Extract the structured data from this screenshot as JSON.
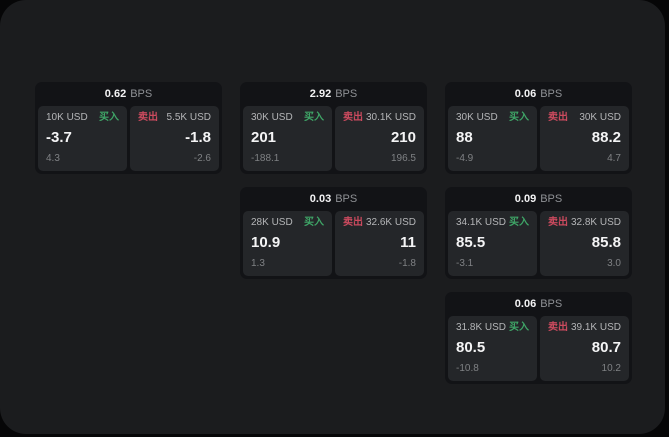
{
  "colors": {
    "green": "#3fa567",
    "red": "#cb4a5e",
    "surface": "#1b1c1e",
    "card": "#121316",
    "panel": "#242629"
  },
  "labels": {
    "bps": "BPS",
    "buy": "买入",
    "sell": "卖出"
  },
  "cards": [
    {
      "bps": "0.62",
      "buy": {
        "size": "10K USD",
        "price": "-3.7",
        "delta": "4.3"
      },
      "sell": {
        "size": "5.5K USD",
        "price": "-1.8",
        "delta": "-2.6"
      }
    },
    {
      "bps": "2.92",
      "buy": {
        "size": "30K USD",
        "price": "201",
        "delta": "-188.1"
      },
      "sell": {
        "size": "30.1K USD",
        "price": "210",
        "delta": "196.5"
      }
    },
    {
      "bps": "0.06",
      "buy": {
        "size": "30K USD",
        "price": "88",
        "delta": "-4.9"
      },
      "sell": {
        "size": "30K USD",
        "price": "88.2",
        "delta": "4.7"
      }
    },
    {
      "bps": "0.03",
      "buy": {
        "size": "28K USD",
        "price": "10.9",
        "delta": "1.3"
      },
      "sell": {
        "size": "32.6K USD",
        "price": "11",
        "delta": "-1.8"
      }
    },
    {
      "bps": "0.09",
      "buy": {
        "size": "34.1K USD",
        "price": "85.5",
        "delta": "-3.1"
      },
      "sell": {
        "size": "32.8K USD",
        "price": "85.8",
        "delta": "3.0"
      }
    },
    {
      "bps": "0.06",
      "buy": {
        "size": "31.8K USD",
        "price": "80.5",
        "delta": "-10.8"
      },
      "sell": {
        "size": "39.1K USD",
        "price": "80.7",
        "delta": "10.2"
      }
    }
  ]
}
